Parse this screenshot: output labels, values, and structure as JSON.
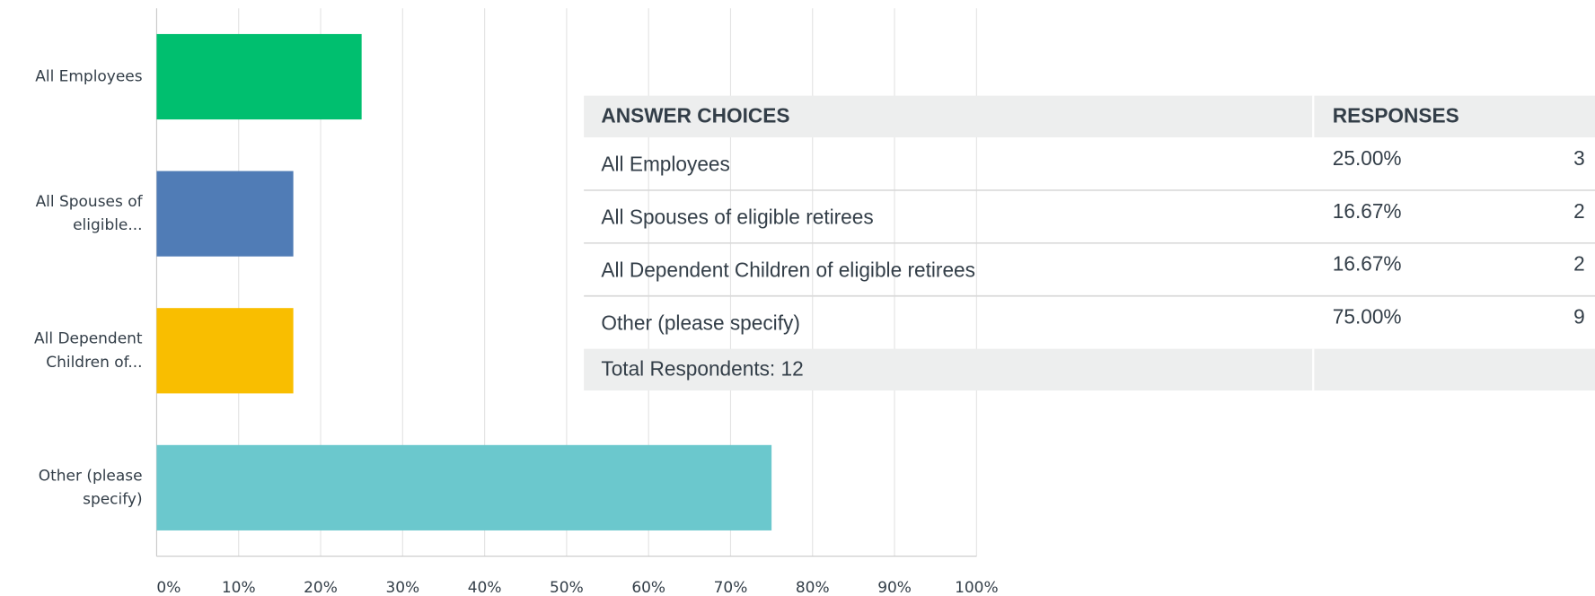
{
  "chart_data": {
    "type": "bar",
    "orientation": "horizontal",
    "categories": [
      [
        "All Employees"
      ],
      [
        "All Spouses of",
        "eligible..."
      ],
      [
        "All Dependent",
        "Children of..."
      ],
      [
        "Other (please",
        "specify)"
      ]
    ],
    "values": [
      25,
      16.67,
      16.67,
      75
    ],
    "colors": [
      "#00bf6f",
      "#507cb6",
      "#f9be00",
      "#6bc8cd"
    ],
    "xlim": [
      0,
      100
    ],
    "xticks": [
      {
        "value": 0,
        "label": "0%"
      },
      {
        "value": 10,
        "label": "10%"
      },
      {
        "value": 20,
        "label": "20%"
      },
      {
        "value": 30,
        "label": "30%"
      },
      {
        "value": 40,
        "label": "40%"
      },
      {
        "value": 50,
        "label": "50%"
      },
      {
        "value": 60,
        "label": "60%"
      },
      {
        "value": 70,
        "label": "70%"
      },
      {
        "value": 80,
        "label": "80%"
      },
      {
        "value": 90,
        "label": "90%"
      },
      {
        "value": 100,
        "label": "100%"
      }
    ],
    "grid": true
  },
  "table": {
    "headers": [
      "ANSWER CHOICES",
      "RESPONSES"
    ],
    "rows": [
      [
        "All Employees",
        "25.00%",
        3
      ],
      [
        "All Spouses of eligible retirees",
        "16.67%",
        2
      ],
      [
        "All Dependent Children of eligible retirees",
        "16.67%",
        2
      ],
      [
        "Other (please specify)",
        "75.00%",
        9
      ]
    ],
    "footer": "Total Respondents: 12"
  }
}
